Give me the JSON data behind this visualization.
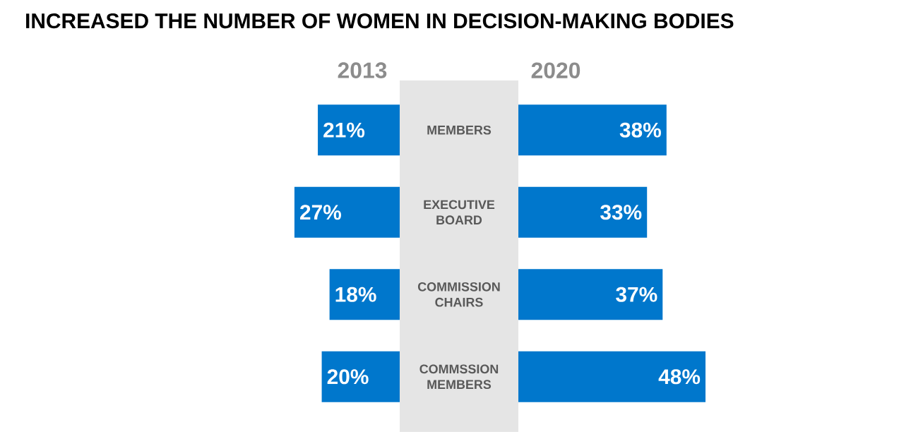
{
  "chart_data": [
    {
      "type": "bar",
      "orientation": "horizontal",
      "title": "INCREASED THE NUMBER OF WOMEN IN DECISION-MAKING BODIES",
      "categories": [
        "MEMBERS",
        "EXECUTIVE BOARD",
        "COMMISSION CHAIRS",
        "COMMSSION MEMBERS"
      ],
      "series": [
        {
          "name": "2013",
          "color": "#0077cc",
          "values": [
            21,
            27,
            18,
            20
          ],
          "value_labels": [
            "21%",
            "27%",
            "18%",
            "20%"
          ]
        }
      ]
    },
    {
      "type": "bar",
      "orientation": "horizontal",
      "categories": [
        null,
        null,
        null,
        null
      ],
      "series": [
        {
          "name": "2020",
          "color": "#0077cc",
          "values": [
            38,
            33,
            37,
            48
          ],
          "value_labels": [
            "38%",
            "33%",
            "37%",
            "48%"
          ]
        }
      ]
    }
  ]
}
